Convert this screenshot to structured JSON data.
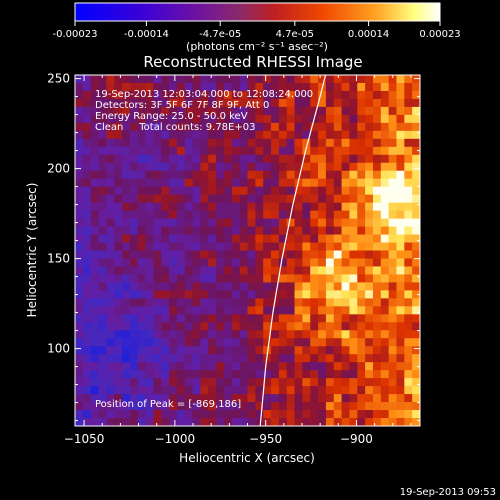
{
  "colorbar": {
    "ticks": [
      {
        "value": -0.00023,
        "label": "-0.00023"
      },
      {
        "value": -0.00014,
        "label": "-0.00014"
      },
      {
        "value": -4.7e-05,
        "label": "-4.7e-05"
      },
      {
        "value": 4.7e-05,
        "label": "4.7e-05"
      },
      {
        "value": 0.00014,
        "label": "0.00014"
      },
      {
        "value": 0.00023,
        "label": "0.00023"
      }
    ],
    "range": [
      -0.00023,
      0.00023
    ],
    "unit_label": "(photons cm⁻² s⁻¹ asec⁻²)",
    "colors": [
      "#0000ff",
      "#5a00b0",
      "#7a2a8a",
      "#a82030",
      "#e04000",
      "#ff8000",
      "#ffff80",
      "#ffffff"
    ]
  },
  "chart_data": {
    "type": "heatmap",
    "title": "Reconstructed RHESSI Image",
    "xlabel": "Heliocentric X (arcsec)",
    "ylabel": "Heliocentric Y (arcsec)",
    "xlim": [
      -1055,
      -865
    ],
    "ylim": [
      57,
      252
    ],
    "xticks": [
      {
        "value": -1050,
        "label": "−1050"
      },
      {
        "value": -1000,
        "label": "−1000"
      },
      {
        "value": -950,
        "label": "−950"
      },
      {
        "value": -900,
        "label": "−900"
      }
    ],
    "yticks": [
      {
        "value": 100,
        "label": "100"
      },
      {
        "value": 150,
        "label": "150"
      },
      {
        "value": 200,
        "label": "200"
      },
      {
        "value": 250,
        "label": "250"
      }
    ],
    "info_lines": [
      "19-Sep-2013 12:03:04.000 to 12:08:24.000",
      "Detectors: 3F 5F 6F 7F 8F 9F, Att 0",
      "Energy Range: 25.0 - 50.0 keV",
      "Clean     Total counts: 9.78E+03"
    ],
    "peak_label": "Position of Peak = [-869,186]",
    "peak": [
      -869,
      186
    ],
    "limb_curve": [
      [
        -953,
        57
      ],
      [
        -950,
        90
      ],
      [
        -946,
        120
      ],
      [
        -941,
        150
      ],
      [
        -935,
        180
      ],
      [
        -928,
        210
      ],
      [
        -920,
        240
      ],
      [
        -917,
        252
      ]
    ]
  },
  "footer": {
    "timestamp": "19-Sep-2013 09:53"
  }
}
